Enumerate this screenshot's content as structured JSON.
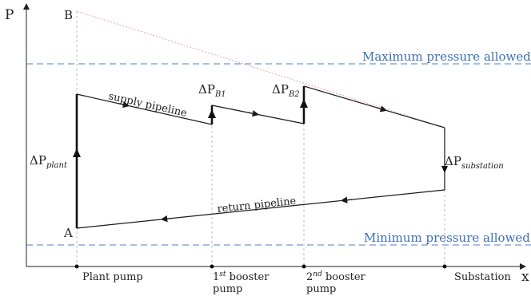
{
  "axes": {
    "y_label": "P",
    "x_label": "x"
  },
  "limits": {
    "max_label": "Maximum pressure allowed",
    "min_label": "Minimum pressure allowed"
  },
  "points": {
    "a": "A",
    "b": "B"
  },
  "pipelines": {
    "supply": "supply pipeline",
    "return": "return pipeline"
  },
  "pressure_rises": {
    "plant": {
      "symbol": "ΔP",
      "subscript": "plant"
    },
    "booster1": {
      "symbol": "ΔP",
      "subscript": "B1"
    },
    "booster2": {
      "symbol": "ΔP",
      "subscript": "B2"
    },
    "substation": {
      "symbol": "ΔP",
      "subscript": "substation"
    }
  },
  "stations": {
    "plant_pump": "Plant pump",
    "booster1": {
      "ordinal": "1",
      "ordinal_suffix": "st",
      "line1_rest": " booster",
      "line2": "pump"
    },
    "booster2": {
      "ordinal": "2",
      "ordinal_suffix": "nd",
      "line1_rest": " booster",
      "line2": "pump"
    },
    "substation": "Substation"
  },
  "colors": {
    "limit_line": "#4f7fc6",
    "limit_text": "#3b6fb6",
    "curve": "#1a1a1a",
    "guide_line": "#bdbdbd",
    "grade_line": "#f0a0b0"
  }
}
